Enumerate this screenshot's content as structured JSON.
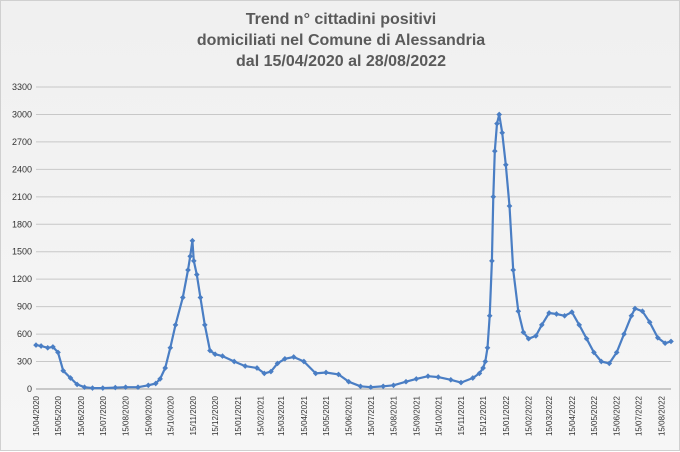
{
  "chart_data": {
    "type": "line",
    "title_lines": [
      "Trend n° cittadini positivi",
      "domiciliati nel Comune di Alessandria",
      "dal 15/04/2020 al 28/08/2022"
    ],
    "xlabel": "",
    "ylabel": "",
    "ylim": [
      0,
      3300
    ],
    "yticks": [
      0,
      300,
      600,
      900,
      1200,
      1500,
      1800,
      2100,
      2400,
      2700,
      3000,
      3300
    ],
    "xlim": [
      "2020-04-15",
      "2022-08-28"
    ],
    "xtick_labels": [
      "15/04/2020",
      "15/05/2020",
      "15/06/2020",
      "15/07/2020",
      "15/08/2020",
      "15/09/2020",
      "15/10/2020",
      "15/11/2020",
      "15/12/2020",
      "15/01/2021",
      "15/02/2021",
      "15/03/2021",
      "15/04/2021",
      "15/05/2021",
      "15/06/2021",
      "15/07/2021",
      "15/08/2021",
      "15/09/2021",
      "15/10/2021",
      "15/11/2021",
      "15/12/2021",
      "15/01/2022",
      "15/02/2022",
      "15/03/2022",
      "15/04/2022",
      "15/05/2022",
      "15/06/2022",
      "15/07/2022",
      "15/08/2022"
    ],
    "grid": "horizontal",
    "legend": "none",
    "colors": {
      "series": "#4a7ec4",
      "grid": "#c8c8c8",
      "text": "#5a5a5a"
    },
    "series": [
      {
        "x": [
          "2020-04-15",
          "2020-04-22",
          "2020-05-01",
          "2020-05-08",
          "2020-05-15",
          "2020-05-22",
          "2020-06-01",
          "2020-06-10",
          "2020-06-20",
          "2020-07-01",
          "2020-07-15",
          "2020-08-01",
          "2020-08-15",
          "2020-09-01",
          "2020-09-15",
          "2020-09-25",
          "2020-10-01",
          "2020-10-08",
          "2020-10-15",
          "2020-10-22",
          "2020-11-01",
          "2020-11-08",
          "2020-11-11",
          "2020-11-14",
          "2020-11-16",
          "2020-11-20",
          "2020-11-25",
          "2020-12-01",
          "2020-12-08",
          "2020-12-15",
          "2020-12-25",
          "2021-01-10",
          "2021-01-25",
          "2021-02-10",
          "2021-02-20",
          "2021-03-01",
          "2021-03-10",
          "2021-03-20",
          "2021-04-01",
          "2021-04-15",
          "2021-05-01",
          "2021-05-15",
          "2021-06-01",
          "2021-06-15",
          "2021-07-01",
          "2021-07-15",
          "2021-08-01",
          "2021-08-15",
          "2021-09-01",
          "2021-09-15",
          "2021-10-01",
          "2021-10-15",
          "2021-11-01",
          "2021-11-15",
          "2021-12-01",
          "2021-12-10",
          "2021-12-15",
          "2021-12-18",
          "2021-12-21",
          "2021-12-24",
          "2021-12-27",
          "2021-12-29",
          "2021-12-31",
          "2022-01-03",
          "2022-01-06",
          "2022-01-10",
          "2022-01-15",
          "2022-01-20",
          "2022-01-25",
          "2022-02-01",
          "2022-02-08",
          "2022-02-15",
          "2022-02-25",
          "2022-03-05",
          "2022-03-15",
          "2022-03-25",
          "2022-04-05",
          "2022-04-15",
          "2022-04-25",
          "2022-05-05",
          "2022-05-15",
          "2022-05-25",
          "2022-06-05",
          "2022-06-15",
          "2022-06-25",
          "2022-07-05",
          "2022-07-10",
          "2022-07-20",
          "2022-07-30",
          "2022-08-10",
          "2022-08-20",
          "2022-08-28"
        ],
        "values": [
          480,
          470,
          450,
          460,
          400,
          200,
          120,
          50,
          20,
          10,
          10,
          15,
          20,
          20,
          40,
          60,
          110,
          230,
          450,
          700,
          1000,
          1300,
          1450,
          1620,
          1400,
          1250,
          1000,
          700,
          420,
          380,
          360,
          300,
          250,
          230,
          170,
          190,
          280,
          330,
          350,
          300,
          170,
          180,
          160,
          80,
          30,
          20,
          30,
          40,
          80,
          110,
          140,
          130,
          100,
          70,
          120,
          170,
          230,
          300,
          450,
          800,
          1400,
          2100,
          2600,
          2900,
          3000,
          2800,
          2450,
          2000,
          1300,
          850,
          620,
          550,
          580,
          700,
          830,
          820,
          800,
          840,
          700,
          550,
          400,
          300,
          280,
          400,
          600,
          800,
          880,
          850,
          730,
          560,
          500,
          520
        ]
      }
    ]
  }
}
